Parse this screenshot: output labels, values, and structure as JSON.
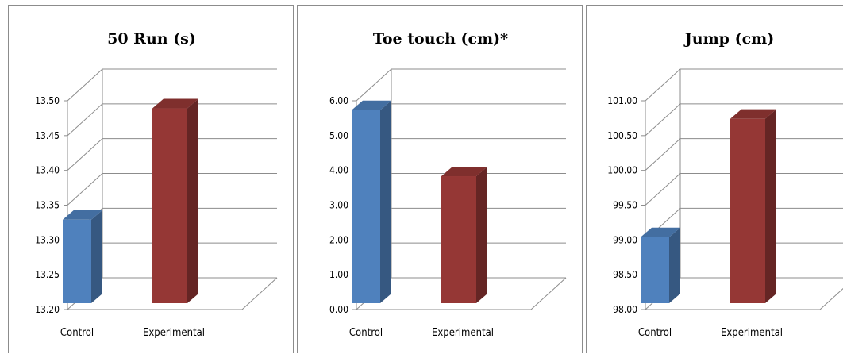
{
  "chart_data": [
    {
      "type": "bar",
      "title": "50 Run (s)",
      "categories": [
        "Control",
        "Experimental"
      ],
      "values": [
        13.32,
        13.48
      ],
      "ylim": [
        13.2,
        13.5
      ],
      "yticks": [
        "13.20",
        "13.25",
        "13.30",
        "13.35",
        "13.40",
        "13.45",
        "13.50"
      ],
      "colors": [
        "#4f81bd",
        "#953735"
      ],
      "xlabel": "",
      "ylabel": "",
      "grid": true
    },
    {
      "type": "bar",
      "title": "Toe touch (cm)*",
      "categories": [
        "Control",
        "Experimental"
      ],
      "values": [
        5.55,
        3.65
      ],
      "ylim": [
        0.0,
        6.0
      ],
      "yticks": [
        "0.00",
        "1.00",
        "2.00",
        "3.00",
        "4.00",
        "5.00",
        "6.00"
      ],
      "colors": [
        "#4f81bd",
        "#953735"
      ],
      "xlabel": "",
      "ylabel": "",
      "grid": true
    },
    {
      "type": "bar",
      "title": "Jump (cm)",
      "categories": [
        "Control",
        "Experimental"
      ],
      "values": [
        98.95,
        100.65
      ],
      "ylim": [
        98.0,
        101.0
      ],
      "yticks": [
        "98.00",
        "98.50",
        "99.00",
        "99.50",
        "100.00",
        "100.50",
        "101.00"
      ],
      "colors": [
        "#4f81bd",
        "#953735"
      ],
      "xlabel": "",
      "ylabel": "",
      "grid": true
    }
  ]
}
